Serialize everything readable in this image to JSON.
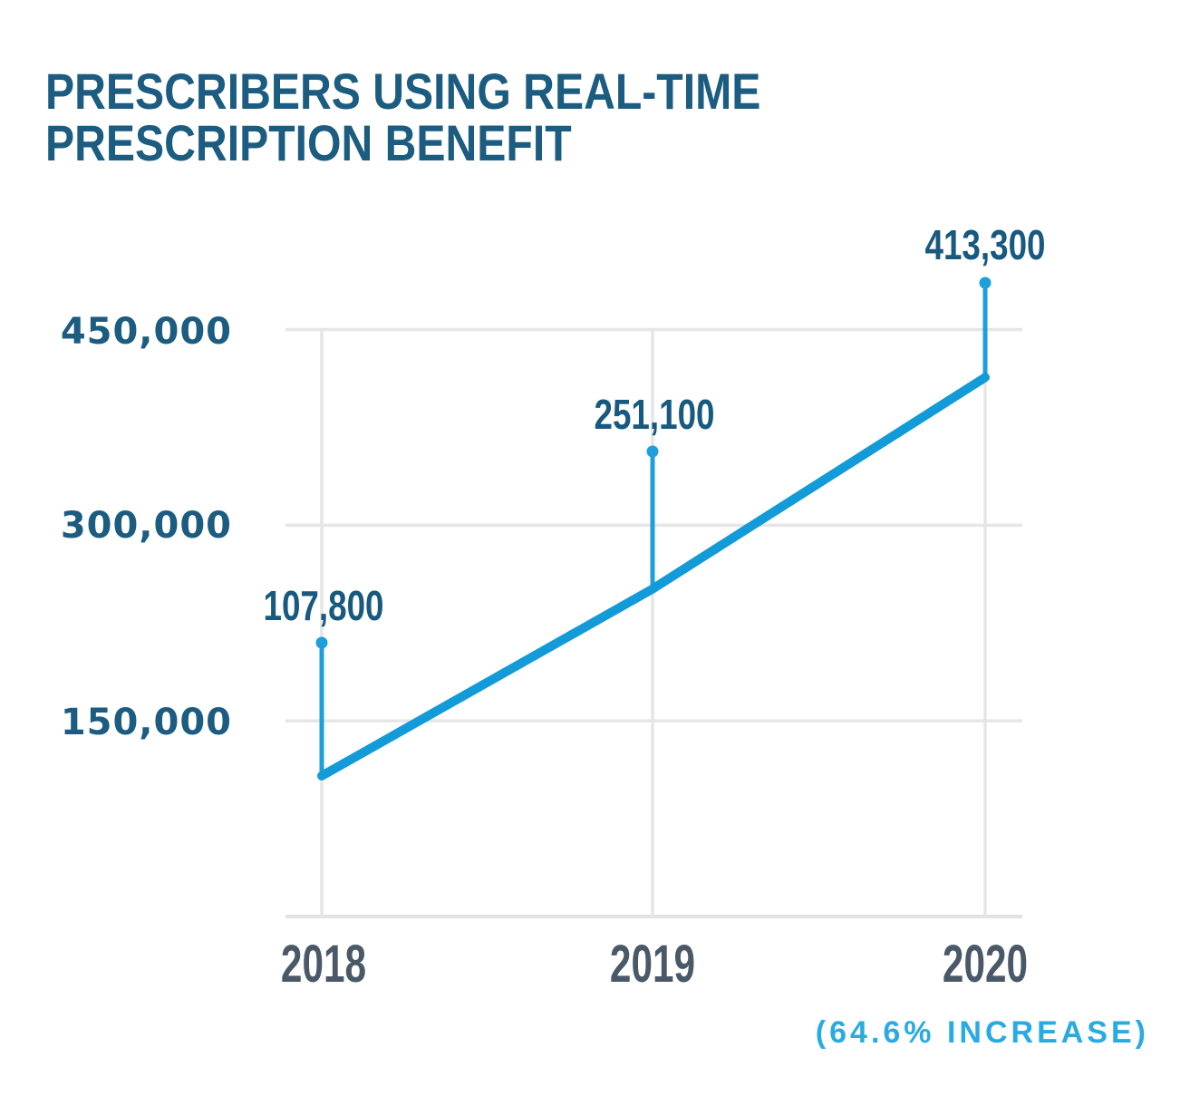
{
  "title": {
    "line1": "PRESCRIBERS USING REAL-TIME",
    "line2": "PRESCRIPTION BENEFIT"
  },
  "annotation": "(64.6% INCREASE)",
  "colors": {
    "title_text": "#1b5c80",
    "year_text": "#4a5968",
    "line": "#129bd8",
    "callout": "#1b9fdd",
    "annotation_text": "#29abe2",
    "gridline": "#e6e6e6",
    "baseline": "#e2e2e2",
    "background": "#ffffff"
  },
  "chart_data": {
    "type": "line",
    "title": "PRESCRIBERS USING REAL-TIME PRESCRIPTION BENEFIT",
    "categories": [
      "2018",
      "2019",
      "2020"
    ],
    "values": [
      107800,
      251100,
      413300
    ],
    "point_labels": [
      "107,800",
      "251,100",
      "413,300"
    ],
    "yticks": [
      {
        "value": 150000,
        "label": "150,000"
      },
      {
        "value": 300000,
        "label": "300,000"
      },
      {
        "value": 450000,
        "label": "450,000"
      }
    ],
    "ylim": [
      0,
      450000
    ],
    "xlabel": "",
    "ylabel": "",
    "grid": true,
    "legend": "none",
    "annotation": "(64.6% INCREASE)"
  }
}
